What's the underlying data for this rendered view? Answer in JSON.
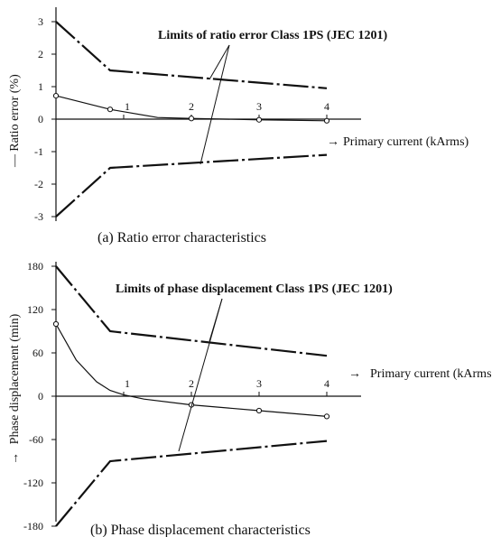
{
  "chart_data": [
    {
      "type": "line",
      "caption": "(a)  Ratio error characteristics",
      "ylabel": "Ratio error (%)",
      "xlabel": "Primary current (kArms)",
      "annotation": "Limits of ratio error Class 1PS (JEC 1201)",
      "xlim": [
        0,
        4.3
      ],
      "ylim": [
        -3,
        3
      ],
      "xticks": [
        1,
        2,
        3,
        4
      ],
      "yticks": [
        3,
        2,
        1,
        0,
        -1,
        -2,
        -3
      ],
      "ytick_labels": [
        "3",
        "2",
        "1",
        "0",
        "-1",
        "-2",
        "-3"
      ],
      "series": [
        {
          "role": "measured",
          "x": [
            0.0,
            0.8,
            1.5,
            2.0,
            3.0,
            4.0
          ],
          "y": [
            0.72,
            0.3,
            0.05,
            0.02,
            -0.02,
            -0.05
          ],
          "markers": [
            0.0,
            0.8,
            2.0,
            3.0,
            4.0
          ]
        },
        {
          "role": "upper-limit",
          "x": [
            0.0,
            0.8,
            4.0
          ],
          "y": [
            3.0,
            1.5,
            0.95
          ]
        },
        {
          "role": "lower-limit",
          "x": [
            0.0,
            0.8,
            4.0
          ],
          "y": [
            -3.0,
            -1.5,
            -1.1
          ]
        }
      ]
    },
    {
      "type": "line",
      "caption": "(b)  Phase displacement characteristics",
      "ylabel": "Phase displacement (min)",
      "xlabel": "Primary current (kArms",
      "annotation": "Limits of phase displacement Class 1PS (JEC 1201)",
      "xlim": [
        0,
        4.3
      ],
      "ylim": [
        -180,
        180
      ],
      "xticks": [
        1,
        2,
        3,
        4
      ],
      "yticks": [
        180,
        120,
        60,
        0,
        -60,
        -120,
        -180
      ],
      "ytick_labels": [
        "180",
        "120",
        "60",
        "0",
        "-60",
        "-120",
        "-180"
      ],
      "series": [
        {
          "role": "measured",
          "x": [
            0.0,
            0.3,
            0.6,
            0.8,
            1.0,
            1.3,
            2.0,
            3.0,
            4.0
          ],
          "y": [
            100,
            50,
            20,
            8,
            2,
            -4,
            -12,
            -20,
            -28
          ],
          "markers": [
            0.0,
            2.0,
            3.0,
            4.0
          ]
        },
        {
          "role": "upper-limit",
          "x": [
            0.0,
            0.8,
            4.0
          ],
          "y": [
            180,
            90,
            56
          ]
        },
        {
          "role": "lower-limit",
          "x": [
            0.0,
            0.8,
            4.0
          ],
          "y": [
            -180,
            -90,
            -62
          ]
        }
      ]
    }
  ]
}
